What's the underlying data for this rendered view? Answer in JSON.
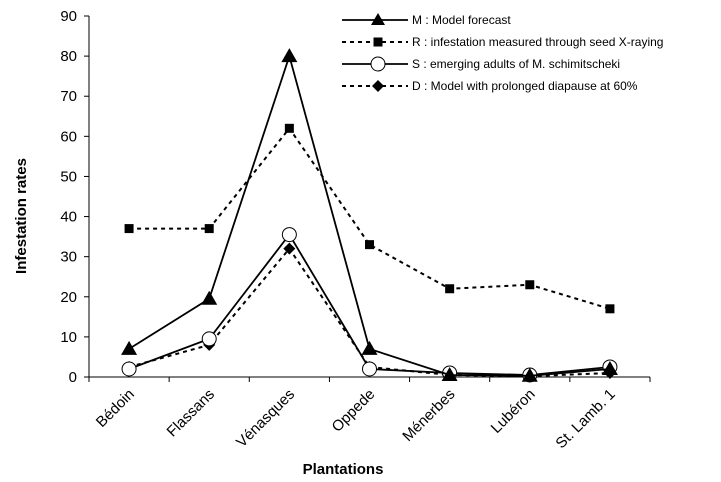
{
  "chart_data": {
    "type": "line",
    "title": "",
    "xlabel": "Plantations",
    "ylabel": "Infestation rates",
    "ylim": [
      0,
      90
    ],
    "yticks": [
      0,
      10,
      20,
      30,
      40,
      50,
      60,
      70,
      80,
      90
    ],
    "grid": false,
    "legend_position": "top-right",
    "categories": [
      "Bédoin",
      "Flassans",
      "Vénasques",
      "Oppede",
      "Ménerbes",
      "Lubéron",
      "St. Lamb. 1"
    ],
    "series": [
      {
        "name": "M : Model forecast",
        "marker": "triangle",
        "line": "solid",
        "color": "#000000",
        "values": [
          7,
          19.5,
          80,
          7,
          0.5,
          0.3,
          2
        ]
      },
      {
        "name": "R : infestation measured through seed X-raying",
        "marker": "square",
        "line": "dashed",
        "color": "#000000",
        "values": [
          37,
          37,
          62,
          33,
          22,
          23,
          17
        ]
      },
      {
        "name": "S : emerging adults of M. schimitscheki",
        "marker": "circle-open",
        "line": "solid",
        "color": "#000000",
        "values": [
          2,
          9.5,
          35.5,
          2,
          1,
          0.5,
          2.5
        ]
      },
      {
        "name": "D : Model with prolonged diapause at 60%",
        "marker": "diamond",
        "line": "dashed",
        "color": "#000000",
        "values": [
          2.5,
          8,
          32,
          2.5,
          0.5,
          0.2,
          1
        ]
      }
    ]
  }
}
